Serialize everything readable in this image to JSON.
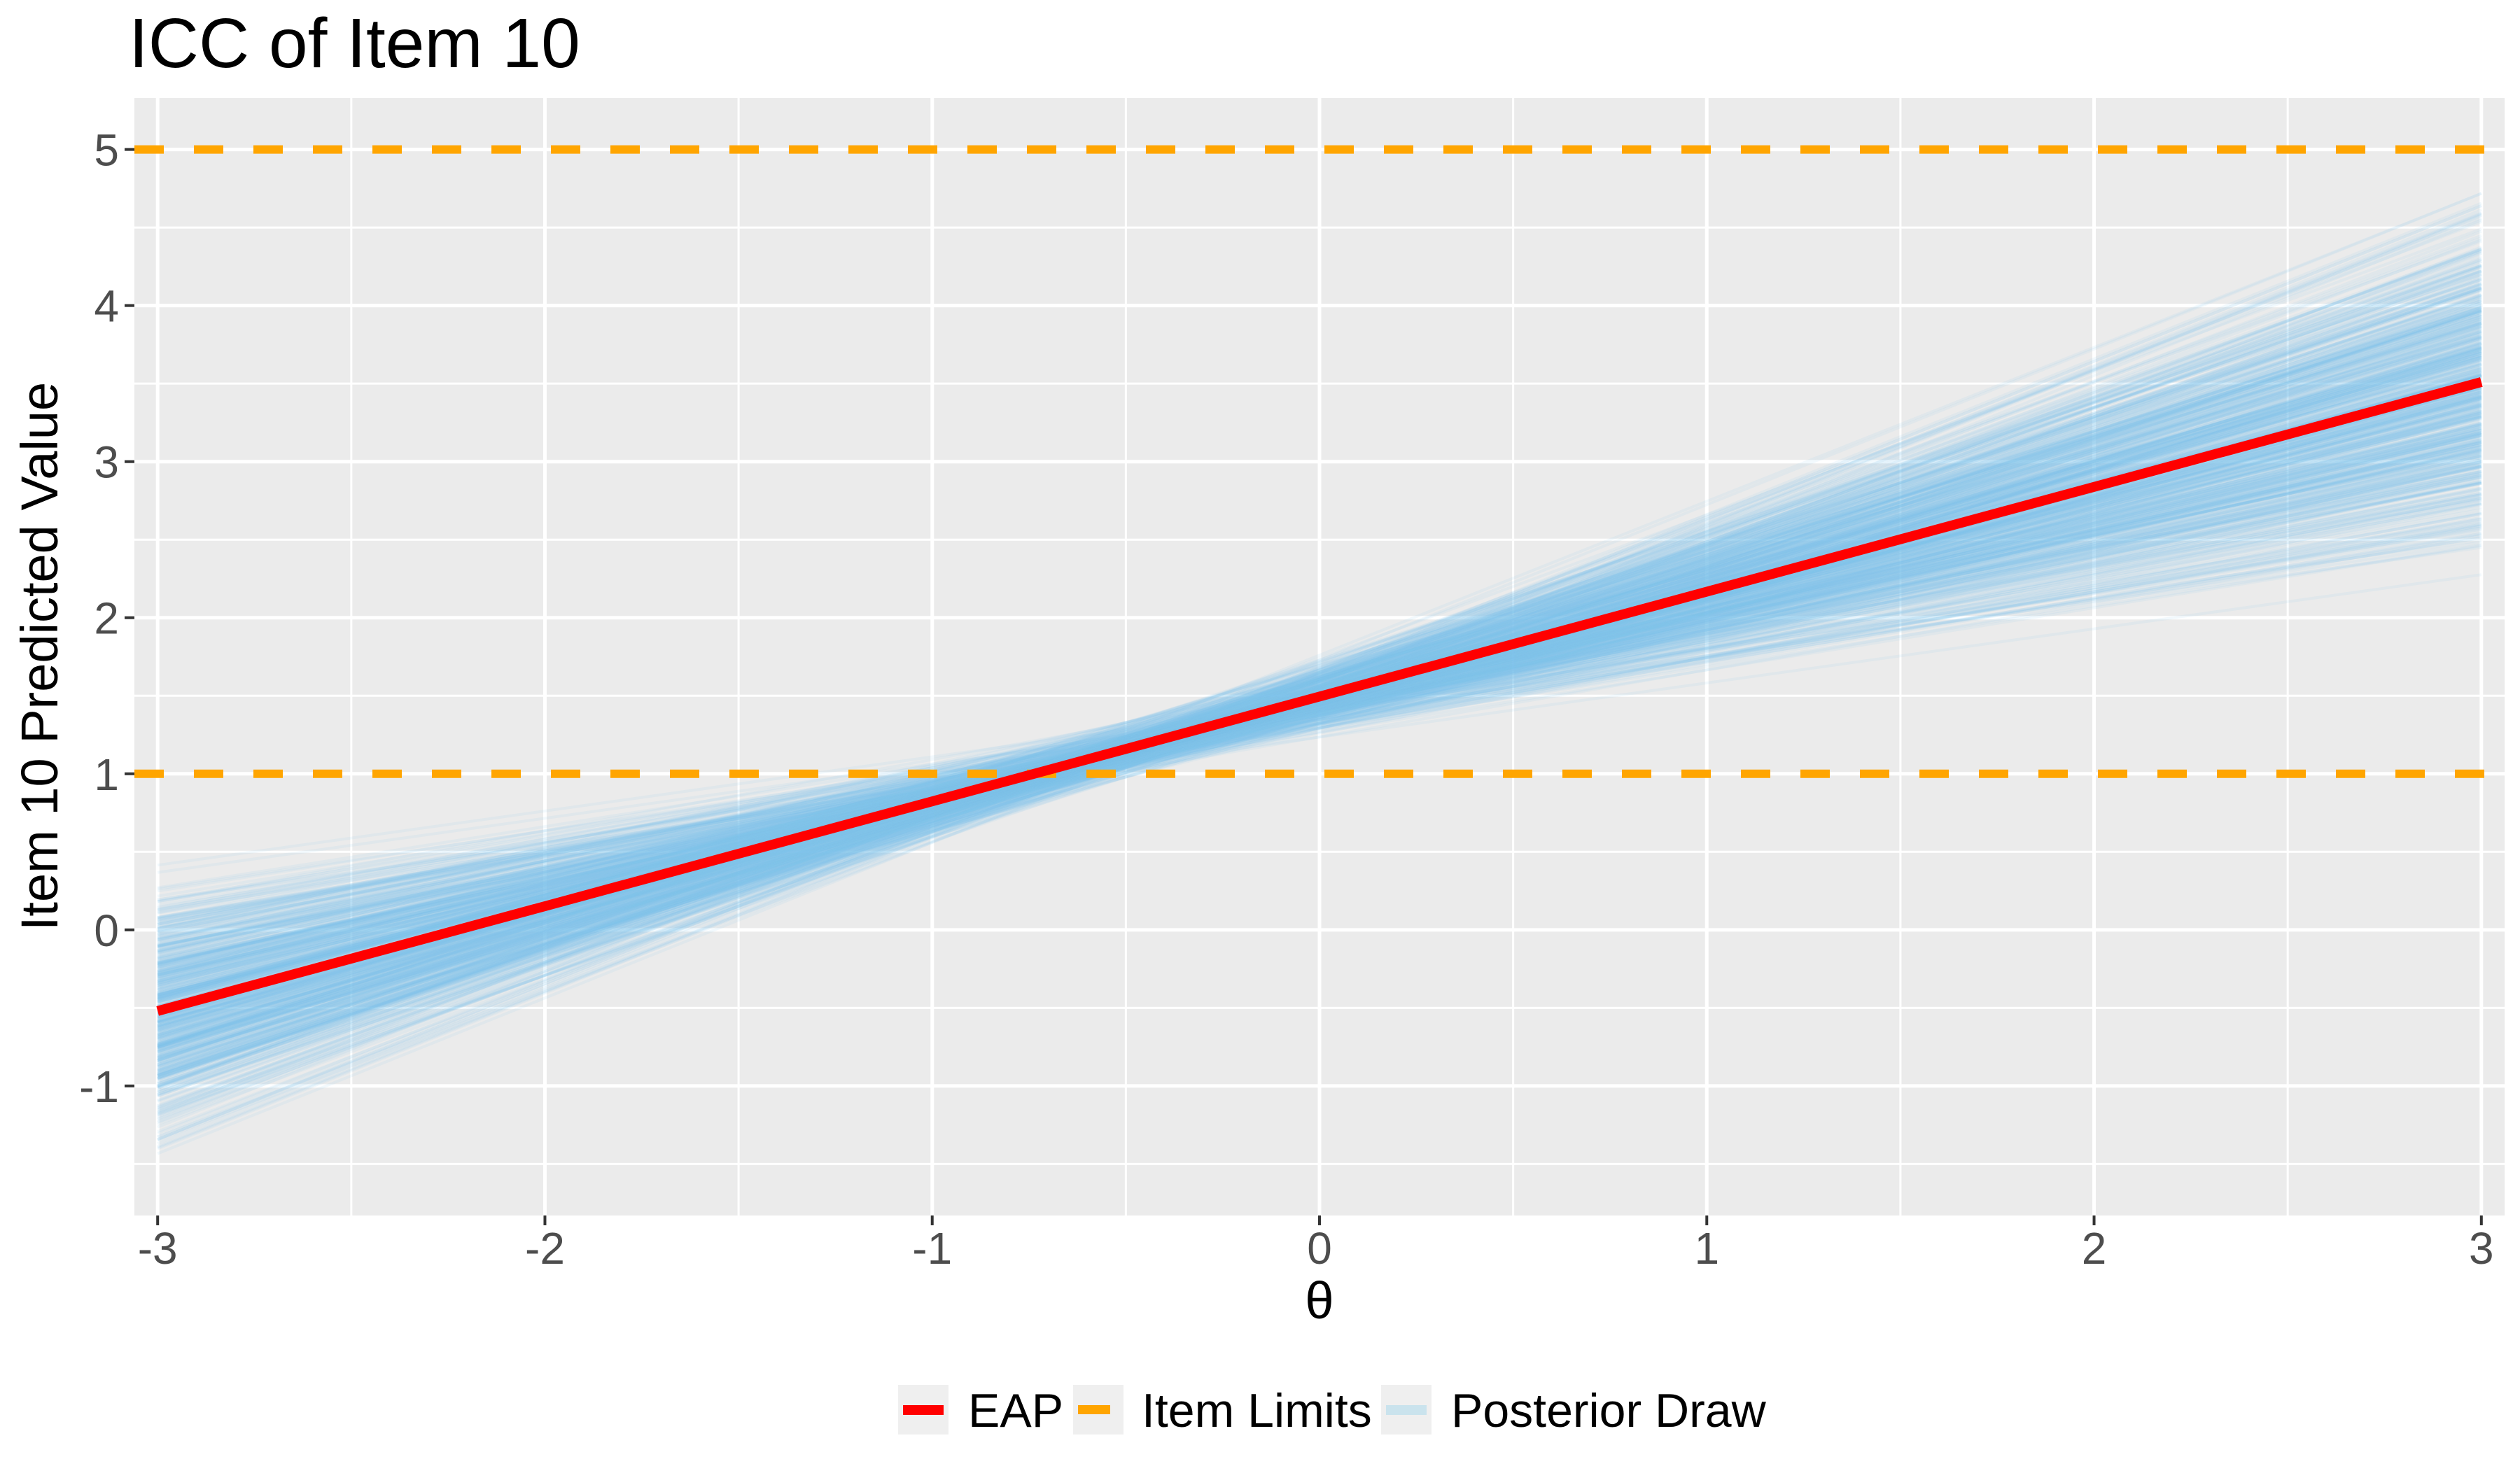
{
  "chart_data": {
    "type": "line",
    "title": "ICC of Item 10",
    "xlabel": "θ",
    "ylabel": "Item 10 Predicted Value",
    "x_ticks": [
      -3,
      -2,
      -1,
      0,
      1,
      2,
      3
    ],
    "y_ticks": [
      -1,
      0,
      1,
      2,
      3,
      4,
      5
    ],
    "xlim": [
      -3.06,
      3.06
    ],
    "ylim": [
      -1.83,
      5.33
    ],
    "grid": {
      "major": true,
      "minor": true,
      "color": "#FFFFFF"
    },
    "panel_color": "#EBEBEB",
    "background_color": "#FFFFFF",
    "series": [
      {
        "name": "EAP",
        "type": "line",
        "x": [
          -3,
          3
        ],
        "y": [
          -0.52,
          3.51
        ],
        "slope": 0.672,
        "intercept": 1.49,
        "color": "#FF0000",
        "width": 14
      },
      {
        "name": "Item Limits",
        "type": "hline",
        "values": [
          1,
          5
        ],
        "color": "#FFA500",
        "dash": [
          42,
          43
        ],
        "width": 12
      },
      {
        "name": "Posterior Draw",
        "type": "line-ensemble",
        "x_span": [
          -3,
          3
        ],
        "n_draws": 700,
        "seed": 7,
        "pivot_x": -0.5,
        "pivot_y": 1.154,
        "pivot_sd": 0.07,
        "slope_mean": 0.672,
        "slope_sd": 0.13,
        "clip_z": 2.5,
        "color": "#7EC6EA",
        "alpha": 0.1,
        "width": 4,
        "envelope": {
          "x": [
            -3,
            -0.5,
            3
          ],
          "upper": [
            0.45,
            1.35,
            4.45
          ],
          "lower": [
            -1.5,
            0.95,
            2.6
          ]
        }
      }
    ],
    "legend": {
      "position": "bottom",
      "key_fill": "#EFEFEF",
      "items": [
        {
          "label": "EAP",
          "swatch": "line",
          "color": "#FF0000"
        },
        {
          "label": "Item Limits",
          "swatch": "dash",
          "color": "#FFA500"
        },
        {
          "label": "Posterior Draw",
          "swatch": "patch",
          "color": "rgba(135,206,235,0.35)"
        }
      ]
    },
    "tick_color": "#333333",
    "tick_label_color": "#4D4D4D"
  }
}
